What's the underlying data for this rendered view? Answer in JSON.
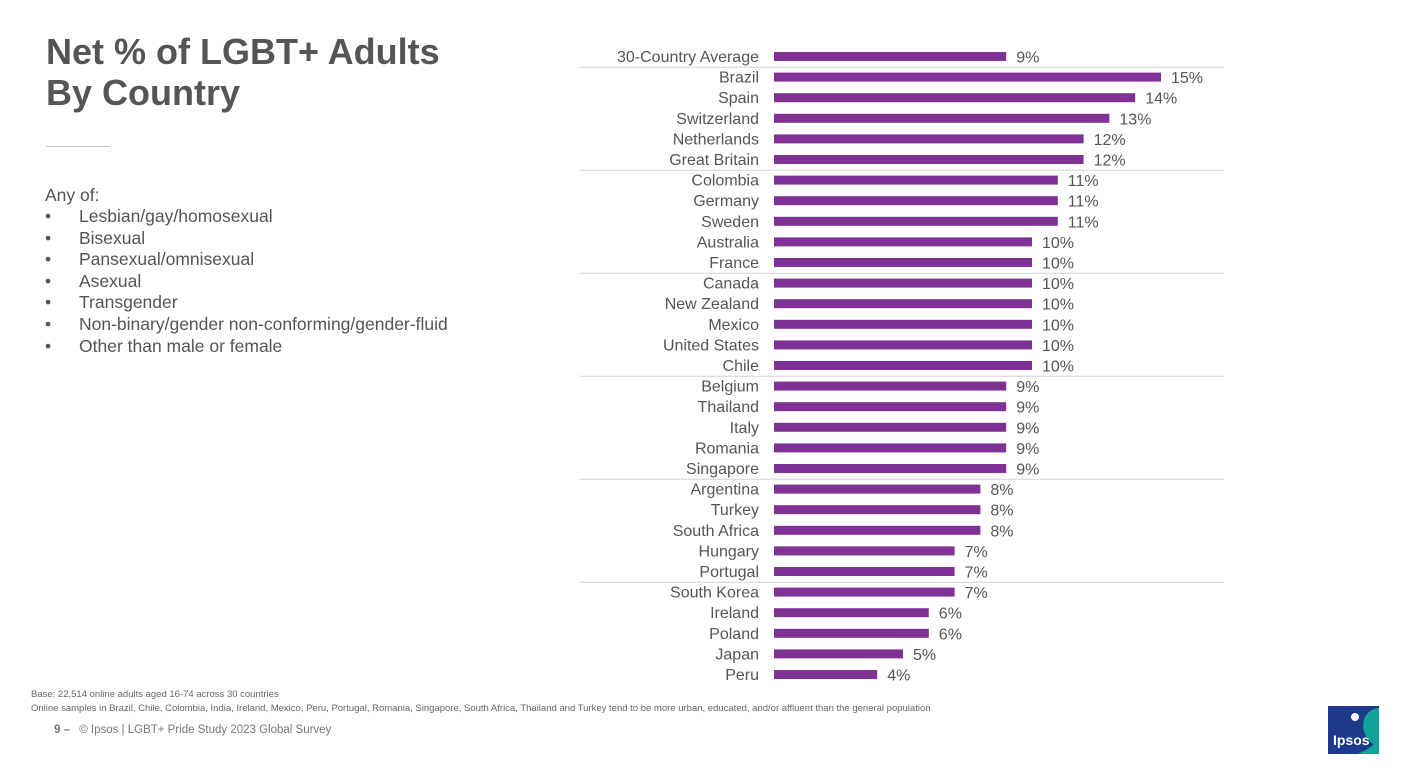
{
  "slide": {
    "title_line1": "Net % of LGBT+ Adults",
    "title_line2": "By Country",
    "definition_intro": "Any of:",
    "definition_items": [
      "Lesbian/gay/homosexual",
      "Bisexual",
      "Pansexual/omnisexual",
      "Asexual",
      "Transgender",
      "Non-binary/gender non-conforming/gender-fluid",
      "Other than male or female"
    ],
    "bullet_char": "•"
  },
  "chart_data": {
    "type": "bar",
    "orientation": "horizontal",
    "title": "Net % of LGBT+ Adults By Country",
    "xlabel": "",
    "ylabel": "",
    "categories": [
      "30-Country Average",
      "Brazil",
      "Spain",
      "Switzerland",
      "Netherlands",
      "Great Britain",
      "Colombia",
      "Germany",
      "Sweden",
      "Australia",
      "France",
      "Canada",
      "New Zealand",
      "Mexico",
      "United States",
      "Chile",
      "Belgium",
      "Thailand",
      "Italy",
      "Romania",
      "Singapore",
      "Argentina",
      "Turkey",
      "South Africa",
      "Hungary",
      "Portugal",
      "South Korea",
      "Ireland",
      "Poland",
      "Japan",
      "Peru"
    ],
    "values": [
      9,
      15,
      14,
      13,
      12,
      12,
      11,
      11,
      11,
      10,
      10,
      10,
      10,
      10,
      10,
      10,
      9,
      9,
      9,
      9,
      9,
      8,
      8,
      8,
      7,
      7,
      7,
      6,
      6,
      5,
      4
    ],
    "value_suffix": "%",
    "xlim": [
      0,
      15
    ],
    "grid": false,
    "legend": "none",
    "bar_color": "#7f3196",
    "separator_color": "#d4d4d4",
    "label_color": "#555555"
  },
  "footnotes": {
    "base": "Base: 22,514 online adults aged 16-74 across 30 countries",
    "samples": "Online samples in Brazil, Chile, Colombia, India, Ireland, Mexico, Peru, Portugal, Romania, Singapore, South Africa, Thailand and Turkey tend to be more urban, educated, and/or affluent than the general population"
  },
  "footer": {
    "page": "9 –",
    "credit": "© Ipsos | LGBT+ Pride Study 2023 Global Survey"
  },
  "logo": {
    "text": "Ipsos",
    "colors": {
      "navy": "#1e3a8a",
      "teal": "#0fa39a"
    }
  }
}
